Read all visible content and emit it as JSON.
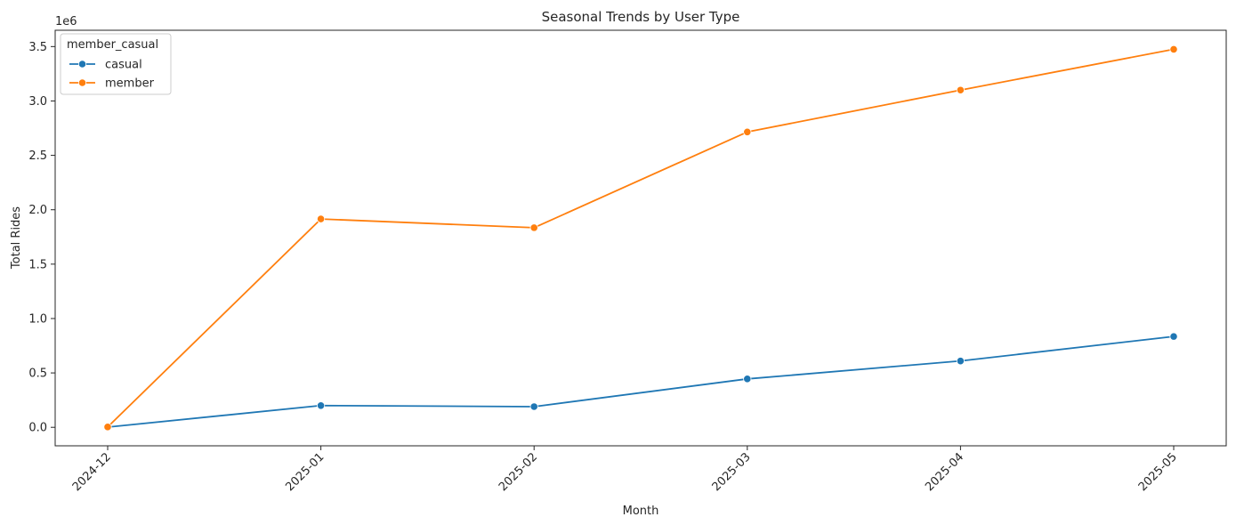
{
  "chart_data": {
    "type": "line",
    "title": "Seasonal Trends by User Type",
    "xlabel": "Month",
    "ylabel": "Total Rides",
    "y_offset_label": "1e6",
    "categories": [
      "2024-12",
      "2025-01",
      "2025-02",
      "2025-03",
      "2025-04",
      "2025-05"
    ],
    "ylim": [
      -0.17,
      3.65
    ],
    "y_ticks": [
      0.0,
      0.5,
      1.0,
      1.5,
      2.0,
      2.5,
      3.0,
      3.5
    ],
    "y_tick_labels": [
      "0.0",
      "0.5",
      "1.0",
      "1.5",
      "2.0",
      "2.5",
      "3.0",
      "3.5"
    ],
    "grid": false,
    "legend": {
      "title": "member_casual",
      "placement": "upper-left"
    },
    "series": [
      {
        "name": "casual",
        "color": "#1f77b4",
        "values": [
          0.002,
          0.2,
          0.19,
          0.445,
          0.61,
          0.835
        ]
      },
      {
        "name": "member",
        "color": "#ff7f0e",
        "values": [
          0.003,
          1.915,
          1.835,
          2.715,
          3.1,
          3.475
        ]
      }
    ]
  }
}
